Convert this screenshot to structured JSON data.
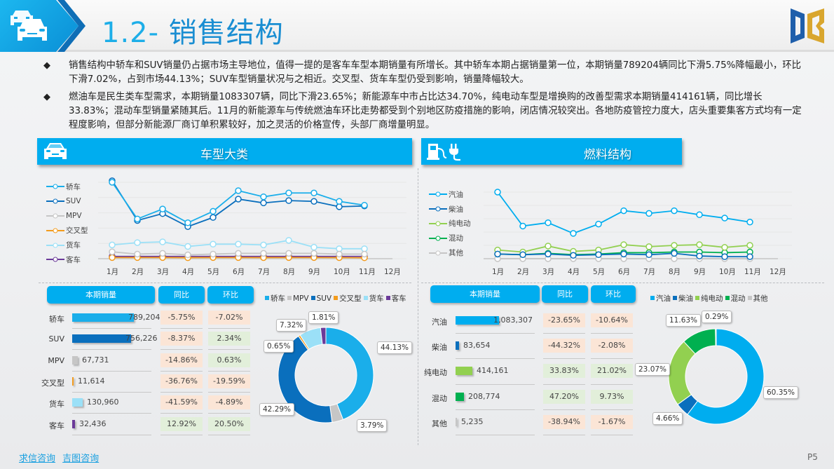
{
  "header": {
    "title_num": "1.2-",
    "title_text": " 销售结构",
    "header_icon": "cars-icon",
    "logo": "db-logo"
  },
  "bullets": [
    {
      "marker": "◆",
      "text": "销售结构中轿车和SUV销量仍占据市场主导地位，值得一提的是客车车型本期销量有所增长。其中轿车本期占据销量第一位，本期销量789204辆同比下滑5.75%降幅最小，环比下滑7.02%，占到市场44.13%；SUV车型销量状况与之相近。交叉型、货车车型仍受到影响，销量降幅较大。"
    },
    {
      "marker": "◆",
      "text": "燃油车是民生类车型需求，本期销量1083307辆，同比下滑23.65%；新能源车中市占比达34.70%，纯电动车型是增换购的改善型需求本期销量414161辆，同比增长33.83%；混动车型销量紧随其后。11月的新能源车与传统燃油车环比走势都受到个别地区防疫措施的影响，闭店情况较突出。各地防疫管控力度大，店头重要集客方式均有一定程度影响，但部分新能源厂商订单积累较好，加之灵活的价格宣传，头部厂商增量明显。"
    }
  ],
  "left_panel": {
    "title": "车型大类",
    "icon": "car-icon",
    "table_headers": {
      "sales": "本期销量",
      "yoy": "同比",
      "mom": "环比"
    },
    "rows": [
      {
        "label": "轿车",
        "value": "789,204",
        "yoy": "-5.75%",
        "mom": "-7.02%",
        "yoy_pos": false,
        "mom_pos": false
      },
      {
        "label": "SUV",
        "value": "756,226",
        "yoy": "-8.37%",
        "mom": "2.34%",
        "yoy_pos": false,
        "mom_pos": true
      },
      {
        "label": "MPV",
        "value": "67,731",
        "yoy": "-14.86%",
        "mom": "0.63%",
        "yoy_pos": false,
        "mom_pos": true
      },
      {
        "label": "交叉型",
        "value": "11,614",
        "yoy": "-36.76%",
        "mom": "-19.59%",
        "yoy_pos": false,
        "mom_pos": false
      },
      {
        "label": "货车",
        "value": "130,960",
        "yoy": "-41.59%",
        "mom": "-4.89%",
        "yoy_pos": false,
        "mom_pos": false
      },
      {
        "label": "客车",
        "value": "32,436",
        "yoy": "12.92%",
        "mom": "20.50%",
        "yoy_pos": true,
        "mom_pos": true
      }
    ],
    "pie_labels": [
      "44.13%",
      "3.79%",
      "42.29%",
      "0.65%",
      "7.32%",
      "1.81%"
    ]
  },
  "right_panel": {
    "title": "燃料结构",
    "icon": "fuel-pump-plug-icon",
    "table_headers": {
      "sales": "本期销量",
      "yoy": "同比",
      "mom": "环比"
    },
    "rows": [
      {
        "label": "汽油",
        "value": "1,083,307",
        "yoy": "-23.65%",
        "mom": "-10.64%",
        "yoy_pos": false,
        "mom_pos": false
      },
      {
        "label": "柴油",
        "value": "83,654",
        "yoy": "-44.32%",
        "mom": "-2.08%",
        "yoy_pos": false,
        "mom_pos": false
      },
      {
        "label": "纯电动",
        "value": "414,161",
        "yoy": "33.83%",
        "mom": "21.02%",
        "yoy_pos": true,
        "mom_pos": true
      },
      {
        "label": "混动",
        "value": "208,774",
        "yoy": "47.20%",
        "mom": "9.73%",
        "yoy_pos": true,
        "mom_pos": true
      },
      {
        "label": "其他",
        "value": "5,235",
        "yoy": "-38.94%",
        "mom": "-1.67%",
        "yoy_pos": false,
        "mom_pos": false
      }
    ],
    "pie_labels": [
      "60.35%",
      "4.66%",
      "23.07%",
      "11.63%",
      "0.29%"
    ]
  },
  "footer": {
    "links": [
      "求信咨询",
      "吉图咨询"
    ],
    "page": "P5"
  },
  "colors": {
    "accent": "#00adef",
    "轿车": "#1aaeea",
    "SUV": "#0a6fbd",
    "MPV": "#c6c6c6",
    "交叉型": "#f39c1e",
    "货车": "#9be0f7",
    "客车": "#6b3a99",
    "汽油": "#00adef",
    "柴油": "#0a6fbd",
    "纯电动": "#92d050",
    "混动": "#00b050",
    "其他": "#c6c6c6",
    "neg_cell": "#fbe5d6",
    "pos_cell": "#e2efda"
  },
  "chart_data": [
    {
      "type": "line",
      "title": "车型大类 月度销量走势",
      "categories": [
        "1月",
        "2月",
        "3月",
        "4月",
        "5月",
        "6月",
        "7月",
        "8月",
        "9月",
        "10月",
        "11月",
        "12月"
      ],
      "series": [
        {
          "name": "轿车",
          "values": [
            1.0,
            0.52,
            0.65,
            0.47,
            0.62,
            0.89,
            0.81,
            0.86,
            0.86,
            0.75,
            0.7,
            null
          ]
        },
        {
          "name": "SUV",
          "values": [
            1.02,
            0.5,
            0.59,
            0.42,
            0.54,
            0.78,
            0.73,
            0.76,
            0.75,
            0.68,
            0.69,
            null
          ]
        },
        {
          "name": "MPV",
          "values": [
            0.09,
            0.06,
            0.07,
            0.05,
            0.06,
            0.07,
            0.07,
            0.07,
            0.07,
            0.06,
            0.06,
            null
          ]
        },
        {
          "name": "交叉型",
          "values": [
            0.015,
            0.015,
            0.015,
            0.013,
            0.015,
            0.015,
            0.014,
            0.015,
            0.015,
            0.014,
            0.012,
            null
          ]
        },
        {
          "name": "货车",
          "values": [
            0.18,
            0.21,
            0.22,
            0.16,
            0.19,
            0.19,
            0.18,
            0.24,
            0.15,
            0.13,
            0.13,
            null
          ]
        },
        {
          "name": "客车",
          "values": [
            0.03,
            0.03,
            0.03,
            0.03,
            0.03,
            0.03,
            0.03,
            0.03,
            0.03,
            0.03,
            0.03,
            null
          ]
        }
      ],
      "xlabel": "",
      "ylabel": "",
      "grid": true,
      "legend_position": "left",
      "note": "y values relative (no axis ticks shown)"
    },
    {
      "type": "line",
      "title": "燃料结构 月度销量走势",
      "categories": [
        "1月",
        "2月",
        "3月",
        "4月",
        "5月",
        "6月",
        "7月",
        "8月",
        "9月",
        "10月",
        "11月",
        "12月"
      ],
      "series": [
        {
          "name": "汽油",
          "values": [
            1.0,
            0.49,
            0.54,
            0.38,
            0.52,
            0.72,
            0.68,
            0.72,
            0.66,
            0.61,
            0.55,
            null
          ]
        },
        {
          "name": "柴油",
          "values": [
            0.07,
            0.06,
            0.07,
            0.05,
            0.06,
            0.07,
            0.06,
            0.08,
            0.04,
            0.03,
            0.03,
            null
          ]
        },
        {
          "name": "纯电动",
          "values": [
            0.13,
            0.1,
            0.19,
            0.11,
            0.13,
            0.21,
            0.18,
            0.2,
            0.21,
            0.17,
            0.2,
            null
          ]
        },
        {
          "name": "混动",
          "values": [
            0.07,
            0.06,
            0.08,
            0.06,
            0.07,
            0.09,
            0.09,
            0.1,
            0.1,
            0.09,
            0.1,
            null
          ]
        },
        {
          "name": "其他",
          "values": [
            0.0,
            0.0,
            0.0,
            0.0,
            0.0,
            0.0,
            0.0,
            0.0,
            0.0,
            0.0,
            0.0,
            null
          ]
        }
      ],
      "xlabel": "",
      "ylabel": "",
      "grid": true,
      "legend_position": "left",
      "note": "y values relative (no axis ticks shown)"
    },
    {
      "type": "bar",
      "title": "车型大类 本期销量",
      "categories": [
        "轿车",
        "SUV",
        "MPV",
        "交叉型",
        "货车",
        "客车"
      ],
      "values": [
        789204,
        756226,
        67731,
        11614,
        130960,
        32436
      ],
      "yoy": [
        "-5.75%",
        "-8.37%",
        "-14.86%",
        "-36.76%",
        "-41.59%",
        "12.92%"
      ],
      "mom": [
        "-7.02%",
        "2.34%",
        "0.63%",
        "-19.59%",
        "-4.89%",
        "20.50%"
      ]
    },
    {
      "type": "pie",
      "title": "车型大类 市场占比",
      "categories": [
        "轿车",
        "MPV",
        "SUV",
        "交叉型",
        "货车",
        "客车"
      ],
      "values": [
        44.13,
        3.79,
        42.29,
        0.65,
        7.32,
        1.81
      ],
      "legend_position": "top",
      "donut": true
    },
    {
      "type": "bar",
      "title": "燃料结构 本期销量",
      "categories": [
        "汽油",
        "柴油",
        "纯电动",
        "混动",
        "其他"
      ],
      "values": [
        1083307,
        83654,
        414161,
        208774,
        5235
      ],
      "yoy": [
        "-23.65%",
        "-44.32%",
        "33.83%",
        "47.20%",
        "-38.94%"
      ],
      "mom": [
        "-10.64%",
        "-2.08%",
        "21.02%",
        "9.73%",
        "-1.67%"
      ]
    },
    {
      "type": "pie",
      "title": "燃料结构 市场占比",
      "categories": [
        "汽油",
        "柴油",
        "纯电动",
        "混动",
        "其他"
      ],
      "values": [
        60.35,
        4.66,
        23.07,
        11.63,
        0.29
      ],
      "legend_position": "top",
      "donut": true
    }
  ]
}
